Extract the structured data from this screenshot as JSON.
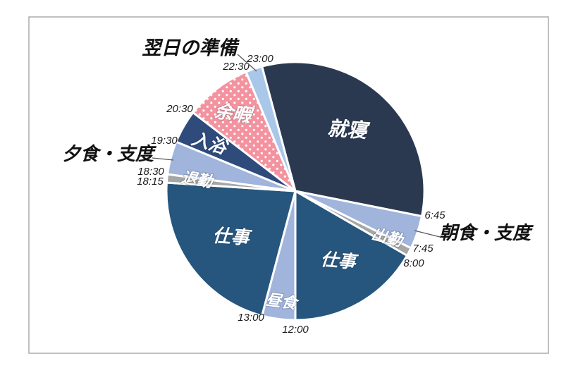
{
  "chart_data": {
    "type": "pie",
    "description": "24-hour daily schedule clock-style pie chart (midnight at top, clockwise)",
    "direction": "clockwise",
    "start_angle_top": "0:00",
    "segments": [
      {
        "id": "sleep",
        "label": "就寝",
        "start": "23:00",
        "end": "6:45",
        "duration_h": 7.75,
        "color": "#2B3950",
        "label_style": "inside"
      },
      {
        "id": "breakfast-prep",
        "label": "朝食・支度",
        "start": "6:45",
        "end": "7:45",
        "duration_h": 1.0,
        "color": "#A0B4DC",
        "label_style": "outside"
      },
      {
        "id": "commute-to-work",
        "label": "出勤",
        "start": "7:45",
        "end": "8:00",
        "duration_h": 0.25,
        "color": "#A6A6A6",
        "label_style": "inside"
      },
      {
        "id": "work-morning",
        "label": "仕事",
        "start": "8:00",
        "end": "12:00",
        "duration_h": 4.0,
        "color": "#26567D",
        "label_style": "inside"
      },
      {
        "id": "lunch",
        "label": "昼食",
        "start": "12:00",
        "end": "13:00",
        "duration_h": 1.0,
        "color": "#A0B4DC",
        "label_style": "inside"
      },
      {
        "id": "work-afternoon",
        "label": "仕事",
        "start": "13:00",
        "end": "18:15",
        "duration_h": 5.25,
        "color": "#26567D",
        "label_style": "inside"
      },
      {
        "id": "leave-work",
        "label": "退勤",
        "start": "18:15",
        "end": "18:30",
        "duration_h": 0.25,
        "color": "#A6A6A6",
        "label_style": "inside"
      },
      {
        "id": "dinner-prep",
        "label": "夕食・支度",
        "start": "18:30",
        "end": "19:30",
        "duration_h": 1.0,
        "color": "#A0B4DC",
        "label_style": "outside"
      },
      {
        "id": "bath",
        "label": "入浴",
        "start": "19:30",
        "end": "20:30",
        "duration_h": 1.0,
        "color": "#2E4B7C",
        "label_style": "inside"
      },
      {
        "id": "leisure",
        "label": "余暇",
        "start": "20:30",
        "end": "22:30",
        "duration_h": 2.0,
        "color": "#F4939F",
        "pattern": "white-dots",
        "label_style": "inside"
      },
      {
        "id": "next-day-prep",
        "label": "翌日の準備",
        "start": "22:30",
        "end": "23:00",
        "duration_h": 0.5,
        "color": "#A9C7E8",
        "label_style": "outside"
      }
    ],
    "time_ticks": [
      "23:00",
      "22:30",
      "20:30",
      "19:30",
      "18:30",
      "18:15",
      "13:00",
      "12:00",
      "8:00",
      "7:45",
      "6:45"
    ],
    "colors": {
      "separator": "#FFFFFF",
      "tick_text": "#1A1A1A",
      "outside_label_text": "#111111",
      "leader_line": "#595959",
      "frame_border": "#ABABAB",
      "background": "#FFFFFF",
      "dot_pattern_dot": "#FFFFFF"
    }
  }
}
